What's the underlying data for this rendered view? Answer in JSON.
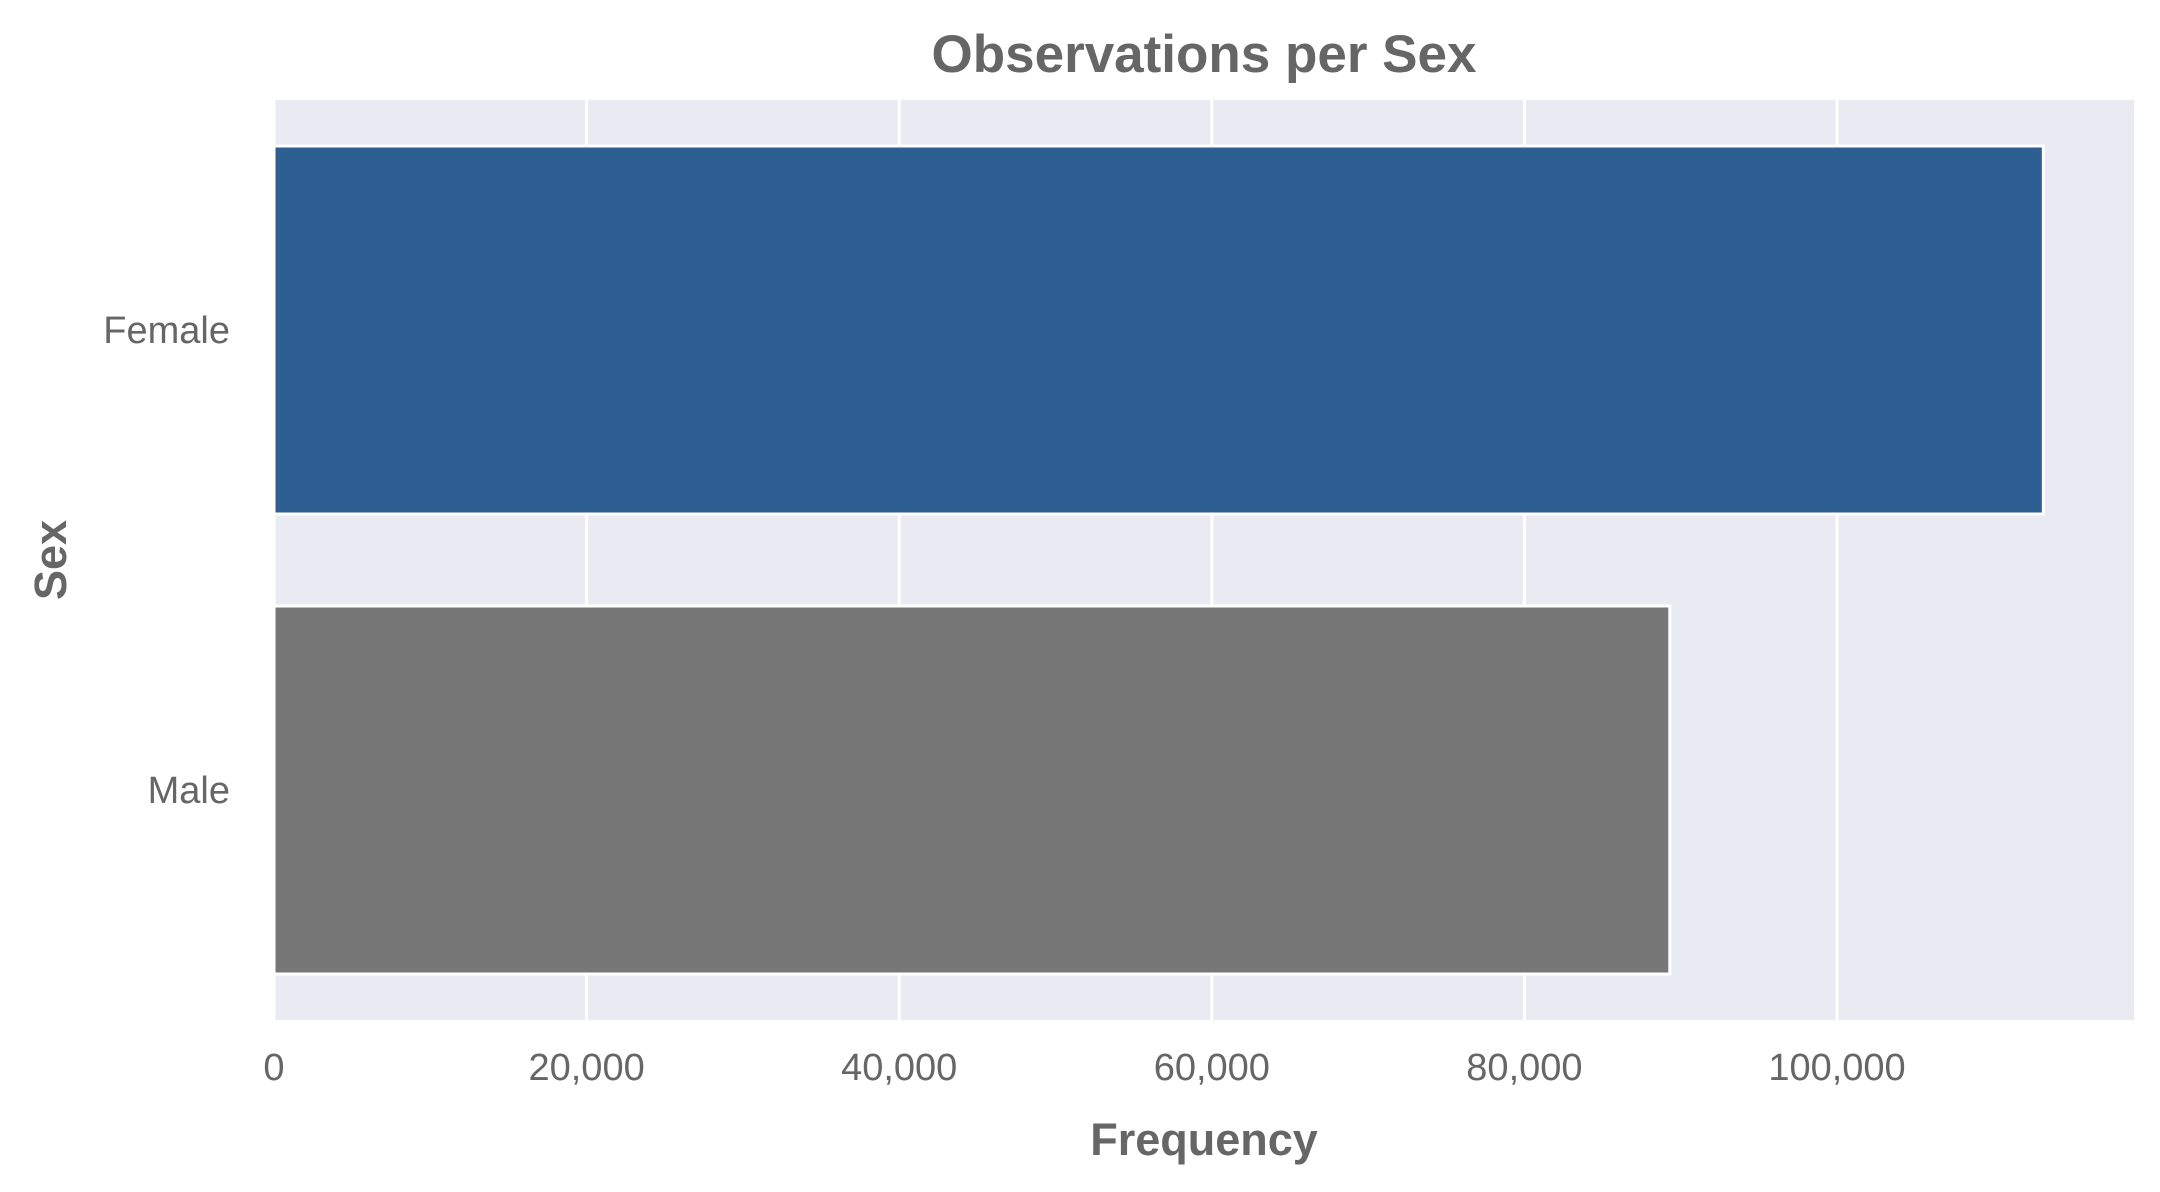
{
  "chart_data": {
    "type": "bar",
    "orientation": "horizontal",
    "title": "Observations per Sex",
    "xlabel": "Frequency",
    "ylabel": "Sex",
    "categories": [
      "Female",
      "Male"
    ],
    "values": [
      113200,
      89300
    ],
    "bar_colors": [
      "#2e5f93",
      "#777777"
    ],
    "xlim": [
      0,
      119000
    ],
    "xticks": [
      0,
      20000,
      40000,
      60000,
      80000,
      100000
    ],
    "xtick_labels": [
      "0",
      "20,000",
      "40,000",
      "60,000",
      "80,000",
      "100,000"
    ],
    "grid": true,
    "background": "#eaeaf2",
    "grid_color": "#ffffff"
  }
}
